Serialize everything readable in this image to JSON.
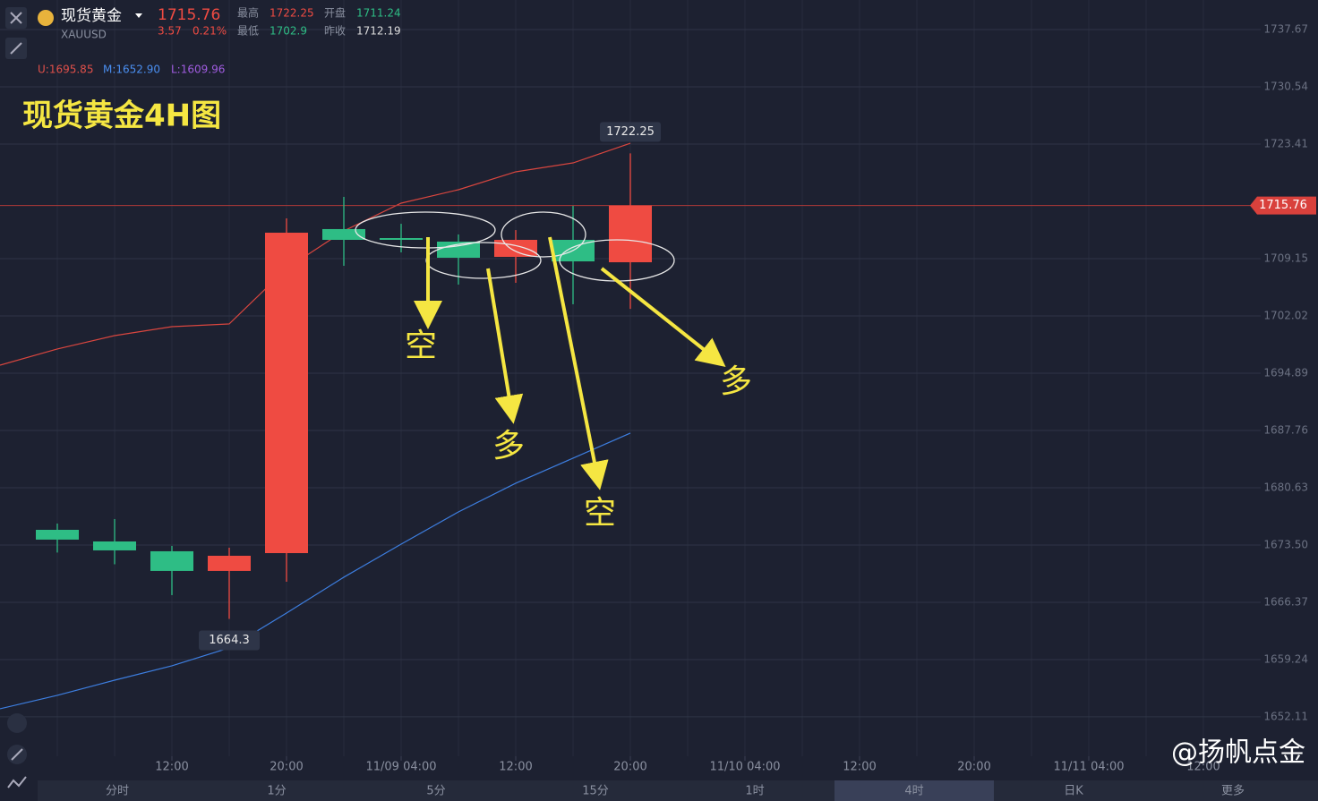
{
  "header": {
    "name": "现货黄金",
    "symbol": "XAUUSD",
    "price": 1715.76,
    "change": 3.57,
    "change_pct": "0.21%",
    "high_label": "最高",
    "high": 1722.25,
    "open_label": "开盘",
    "open": 1711.24,
    "low_label": "最低",
    "low": 1702.9,
    "prev_label": "昨收",
    "prev_close": 1712.19
  },
  "indicator": {
    "upper": "U:1695.85",
    "middle": "M:1652.90",
    "lower": "L:1609.96"
  },
  "chart_data": {
    "type": "candlestick",
    "title": "现货黄金4H图",
    "x": [
      0,
      1,
      2,
      3,
      4,
      5,
      6,
      7,
      8,
      9,
      10
    ],
    "open": [
      1675.39,
      1673.94,
      1672.72,
      1670.27,
      1672.49,
      1712.83,
      1711.71,
      1711.27,
      1709.37,
      1711.49,
      1708.7
    ],
    "high": [
      1676.17,
      1676.73,
      1673.39,
      1673.16,
      1714.16,
      1716.84,
      1713.49,
      1712.16,
      1712.71,
      1715.72,
      1722.25
    ],
    "low": [
      1672.56,
      1671.1,
      1667.26,
      1664.3,
      1668.93,
      1708.26,
      1709.93,
      1705.92,
      1706.14,
      1703.47,
      1702.9
    ],
    "close": [
      1674.17,
      1672.83,
      1670.27,
      1672.16,
      1712.38,
      1711.49,
      1711.49,
      1709.26,
      1711.49,
      1708.81,
      1715.76
    ],
    "up_color": "#ef4b42",
    "down_color": "#2ebd85",
    "band_x": [
      -1,
      0,
      1,
      2,
      3,
      4,
      5,
      6,
      7,
      8,
      9,
      10
    ],
    "upper_band": {
      "color": "#d9463f",
      "values": [
        1695.89,
        1697.9,
        1699.57,
        1700.68,
        1701.02,
        1707.92,
        1712.6,
        1716.06,
        1717.73,
        1719.96,
        1721.07,
        1723.52
      ]
    },
    "lower_band": {
      "color": "#3d7ee0",
      "values": [
        1653.11,
        1654.78,
        1656.67,
        1658.46,
        1660.69,
        1665.03,
        1669.49,
        1673.61,
        1677.62,
        1681.19,
        1684.31,
        1687.43
      ]
    },
    "xlim": [
      -1,
      21
    ],
    "ylim": [
      1647.2,
      1741.35
    ],
    "xticks": [
      {
        "value": 2,
        "label": "12:00"
      },
      {
        "value": 4,
        "label": "20:00"
      },
      {
        "value": 6,
        "label": "11/09 04:00"
      },
      {
        "value": 8,
        "label": "12:00"
      },
      {
        "value": 10,
        "label": "20:00"
      },
      {
        "value": 12,
        "label": "11/10 04:00"
      },
      {
        "value": 14,
        "label": "12:00"
      },
      {
        "value": 16,
        "label": "20:00"
      },
      {
        "value": 18,
        "label": "11/11 04:00"
      },
      {
        "value": 20,
        "label": "12:00"
      }
    ],
    "yticks": [
      1737.67,
      1730.54,
      1723.41,
      1709.15,
      1702.02,
      1694.89,
      1687.76,
      1680.63,
      {
        "value": 1673.5,
        "label": "1673.50"
      },
      1666.37,
      1659.24,
      1652.11
    ],
    "grid": true,
    "annotations": [
      "空",
      "多",
      "空",
      "多"
    ]
  },
  "tabs": [
    "分时",
    "1分",
    "5分",
    "15分",
    "1时",
    "4时",
    "日K",
    "更多"
  ],
  "watermark": "@扬帆点金"
}
